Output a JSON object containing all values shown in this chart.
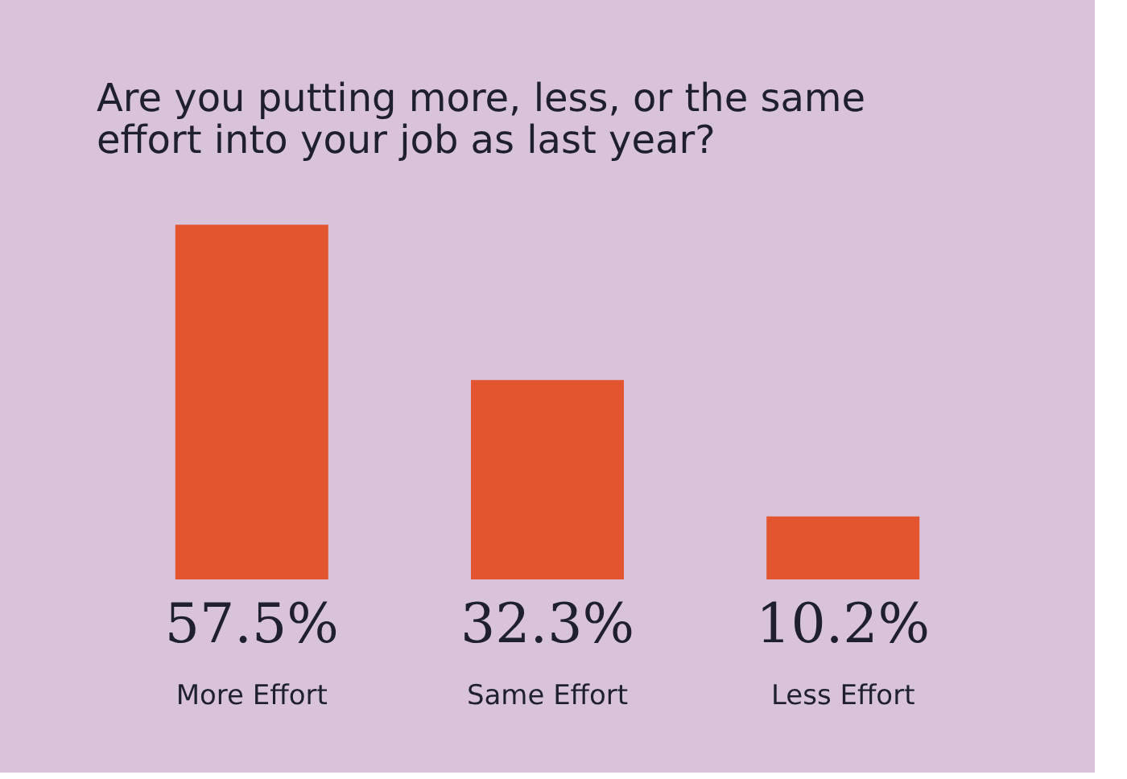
{
  "chart_data": {
    "type": "bar",
    "title": "Are you putting more, less, or the same effort into your job as last year?",
    "categories": [
      "More Effort",
      "Same Effort",
      "Less Effort"
    ],
    "values": [
      57.5,
      32.3,
      10.2
    ],
    "value_labels": [
      "57.5%",
      "32.3%",
      "10.2%"
    ],
    "color": "#e2552f"
  }
}
